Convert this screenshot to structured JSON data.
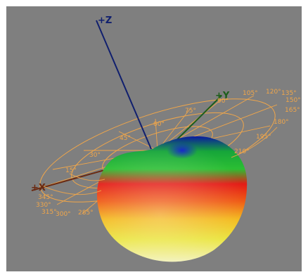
{
  "axes": {
    "z": {
      "label": "+Z",
      "color": "#101f6e"
    },
    "y": {
      "label": "+Y",
      "color": "#1d5e1a"
    },
    "x": {
      "label": "+X",
      "color": "#6a2a12"
    }
  },
  "grid_color": "#f0a64a",
  "background_color": "#7f7f7f",
  "angle_labels": {
    "a0": "0°",
    "a15": "15°",
    "a30": "30°",
    "a45": "45°",
    "a60": "60°",
    "a75": "75°",
    "a90": "90°",
    "a105": "105°",
    "a120": "120°",
    "a135": "135°",
    "a150": "150°",
    "a165": "165°",
    "a180": "180°",
    "a195": "195°",
    "a210": "210°",
    "a285": "285°",
    "a300": "300°",
    "a315": "315°",
    "a330": "330°",
    "a345": "345°"
  }
}
